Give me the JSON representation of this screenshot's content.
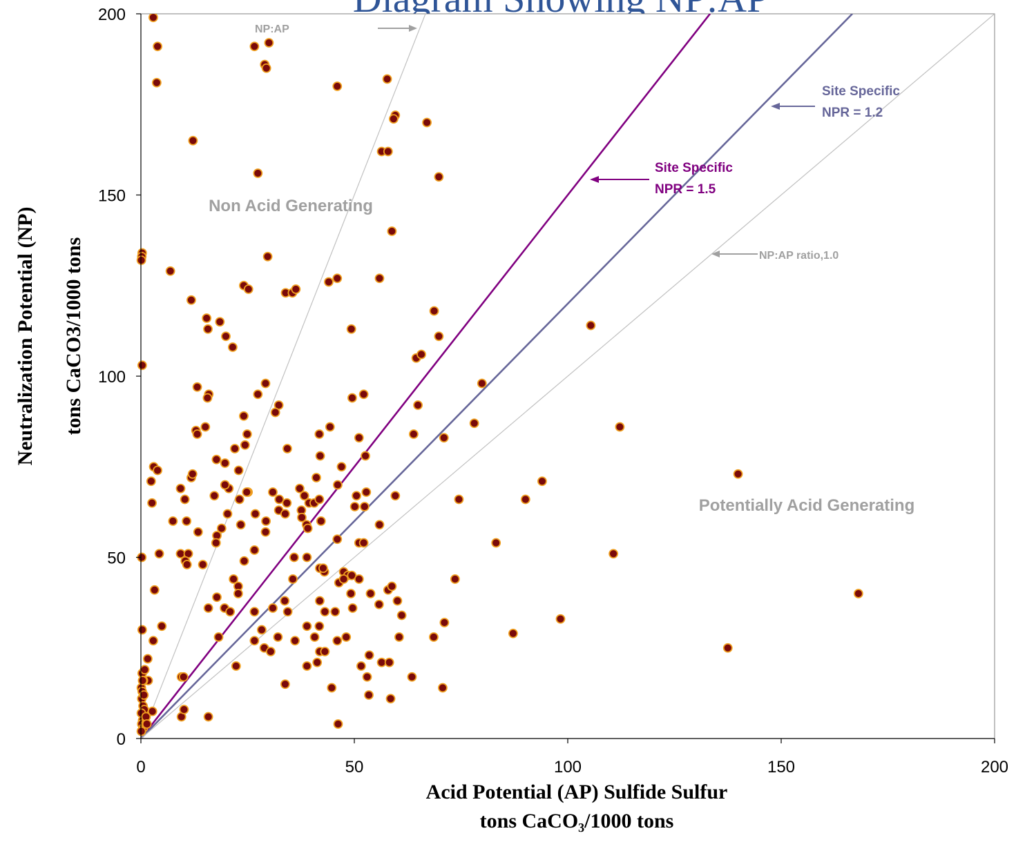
{
  "chart_data": {
    "type": "scatter",
    "title": "Diagram Showing NP:AP",
    "xlabel": [
      "Acid Potential (AP) Sulfide Sulfur",
      "tons CaCO₃/1000 tons"
    ],
    "ylabel": [
      "Neutralization Potential (NP)",
      "tons CaCO3/1000 tons"
    ],
    "xlim": [
      0,
      200
    ],
    "ylim": [
      0,
      200
    ],
    "x_ticks": [
      0,
      50,
      100,
      150,
      200
    ],
    "y_ticks": [
      0,
      50,
      100,
      150,
      200
    ],
    "grid": false,
    "marker": {
      "fill": "#7a0a0a",
      "edge": "#f0a020"
    },
    "ratio_lines": [
      {
        "ratio": 3.0,
        "color": "#c0c0c0"
      },
      {
        "ratio": 1.5,
        "color": "#800080"
      },
      {
        "ratio": 1.2,
        "color": "#666699"
      },
      {
        "ratio": 1.0,
        "color": "#c0c0c0"
      }
    ],
    "annotations": [
      {
        "text": "NP:AP",
        "color": "#a0a0a0"
      },
      {
        "text": "Site Specific",
        "color": "#666699"
      },
      {
        "text": "NPR = 1.2",
        "color": "#666699"
      },
      {
        "text": "Site Specific",
        "color": "#800080"
      },
      {
        "text": "NPR = 1.5",
        "color": "#800080"
      },
      {
        "text": "NP:AP ratio,1.0",
        "color": "#a0a0a0"
      }
    ],
    "region_labels": [
      {
        "text": "Non Acid Generating",
        "color": "#a0a0a0"
      },
      {
        "text": "Potentially Acid Generating",
        "color": "#a0a0a0"
      }
    ],
    "points": [
      [
        2.9,
        199
      ],
      [
        3.9,
        191
      ],
      [
        3.7,
        181
      ],
      [
        26.6,
        191
      ],
      [
        30,
        192
      ],
      [
        29,
        186
      ],
      [
        29.4,
        185
      ],
      [
        46,
        180
      ],
      [
        57.7,
        182
      ],
      [
        59.6,
        172
      ],
      [
        59.2,
        171
      ],
      [
        67,
        170
      ],
      [
        56.4,
        162
      ],
      [
        57.9,
        162
      ],
      [
        69.8,
        155
      ],
      [
        12.2,
        165
      ],
      [
        27.4,
        156
      ],
      [
        0.3,
        134
      ],
      [
        0.2,
        133
      ],
      [
        0.1,
        132
      ],
      [
        6.9,
        129
      ],
      [
        29.7,
        133
      ],
      [
        58.8,
        140
      ],
      [
        24.1,
        125
      ],
      [
        25.2,
        124
      ],
      [
        33.9,
        123
      ],
      [
        35.5,
        123
      ],
      [
        36.3,
        124
      ],
      [
        44,
        126
      ],
      [
        46,
        127
      ],
      [
        55.9,
        127
      ],
      [
        11.8,
        121
      ],
      [
        15.4,
        116
      ],
      [
        15.7,
        113
      ],
      [
        18.5,
        115
      ],
      [
        19.9,
        111
      ],
      [
        21.5,
        108
      ],
      [
        49.3,
        113
      ],
      [
        68.7,
        118
      ],
      [
        69.8,
        111
      ],
      [
        105.4,
        114
      ],
      [
        0.3,
        103
      ],
      [
        64.5,
        105
      ],
      [
        65.7,
        106
      ],
      [
        79.9,
        98
      ],
      [
        13.2,
        97
      ],
      [
        15.9,
        95
      ],
      [
        15.6,
        94
      ],
      [
        29.2,
        98
      ],
      [
        27.4,
        95
      ],
      [
        32.3,
        92
      ],
      [
        31.5,
        90
      ],
      [
        52.2,
        95
      ],
      [
        49.5,
        94
      ],
      [
        64.9,
        92
      ],
      [
        24.1,
        89
      ],
      [
        15.1,
        86
      ],
      [
        12.9,
        85
      ],
      [
        13.2,
        84
      ],
      [
        24.9,
        84
      ],
      [
        24.4,
        81
      ],
      [
        34.3,
        80
      ],
      [
        41.8,
        84
      ],
      [
        44.3,
        86
      ],
      [
        51.1,
        83
      ],
      [
        63.9,
        84
      ],
      [
        71,
        83
      ],
      [
        78.1,
        87
      ],
      [
        112.2,
        86
      ],
      [
        17.7,
        77
      ],
      [
        19.7,
        76
      ],
      [
        22,
        80
      ],
      [
        22.9,
        74
      ],
      [
        3,
        75
      ],
      [
        3.9,
        74
      ],
      [
        2.4,
        71
      ],
      [
        11.8,
        72
      ],
      [
        12.1,
        73
      ],
      [
        9.3,
        69
      ],
      [
        10.3,
        66
      ],
      [
        17.2,
        67
      ],
      [
        20.6,
        69
      ],
      [
        19.7,
        70
      ],
      [
        23.1,
        66
      ],
      [
        25.1,
        68
      ],
      [
        24.8,
        68
      ],
      [
        30.9,
        68
      ],
      [
        32.4,
        66
      ],
      [
        32.3,
        63
      ],
      [
        33.8,
        62
      ],
      [
        34.2,
        65
      ],
      [
        38.3,
        67
      ],
      [
        37.2,
        69
      ],
      [
        39.4,
        65
      ],
      [
        40.6,
        65
      ],
      [
        41.1,
        72
      ],
      [
        41.8,
        66
      ],
      [
        42,
        78
      ],
      [
        47,
        75
      ],
      [
        46.1,
        70
      ],
      [
        50.1,
        64
      ],
      [
        50.5,
        67
      ],
      [
        52.8,
        68
      ],
      [
        52.4,
        64
      ],
      [
        52.6,
        78
      ],
      [
        59.6,
        67
      ],
      [
        74.5,
        66
      ],
      [
        90.1,
        66
      ],
      [
        94,
        71
      ],
      [
        139.9,
        73
      ],
      [
        2.6,
        65
      ],
      [
        7.5,
        60
      ],
      [
        10.7,
        60
      ],
      [
        17.8,
        56
      ],
      [
        18.9,
        58
      ],
      [
        20.3,
        62
      ],
      [
        23.4,
        59
      ],
      [
        26.8,
        62
      ],
      [
        29.2,
        57
      ],
      [
        29.3,
        60
      ],
      [
        37.6,
        63
      ],
      [
        37.7,
        61
      ],
      [
        38.8,
        59
      ],
      [
        39.1,
        58
      ],
      [
        42.2,
        60
      ],
      [
        55.9,
        59
      ],
      [
        13.4,
        57
      ],
      [
        17.6,
        54
      ],
      [
        46,
        55
      ],
      [
        51.1,
        54
      ],
      [
        52.2,
        54
      ],
      [
        0.2,
        50
      ],
      [
        4.3,
        51
      ],
      [
        9.3,
        51
      ],
      [
        11.1,
        51
      ],
      [
        10.4,
        49
      ],
      [
        10.8,
        48
      ],
      [
        14.5,
        48
      ],
      [
        24.2,
        49
      ],
      [
        26.6,
        52
      ],
      [
        35.9,
        50
      ],
      [
        38.9,
        50
      ],
      [
        41.9,
        47
      ],
      [
        43,
        46
      ],
      [
        42.7,
        47
      ],
      [
        47.5,
        46
      ],
      [
        48.5,
        45
      ],
      [
        49.4,
        45
      ],
      [
        83.2,
        54
      ],
      [
        110.7,
        51
      ],
      [
        21.7,
        44
      ],
      [
        22.8,
        42
      ],
      [
        22.8,
        40
      ],
      [
        17.8,
        39
      ],
      [
        19.6,
        36
      ],
      [
        15.8,
        36
      ],
      [
        20.9,
        35
      ],
      [
        26.6,
        35
      ],
      [
        30.9,
        36
      ],
      [
        33.7,
        38
      ],
      [
        34.4,
        35
      ],
      [
        35.6,
        44
      ],
      [
        41.9,
        38
      ],
      [
        43.1,
        35
      ],
      [
        45.5,
        35
      ],
      [
        46.4,
        43
      ],
      [
        47.5,
        44
      ],
      [
        49.2,
        40
      ],
      [
        49.6,
        36
      ],
      [
        51.1,
        44
      ],
      [
        53.8,
        40
      ],
      [
        55.8,
        37
      ],
      [
        57.9,
        41
      ],
      [
        58.8,
        42
      ],
      [
        60.1,
        38
      ],
      [
        61.1,
        34
      ],
      [
        68.6,
        28
      ],
      [
        71.1,
        32
      ],
      [
        73.6,
        44
      ],
      [
        168.1,
        40
      ],
      [
        3.2,
        41
      ],
      [
        4.9,
        31
      ],
      [
        0.3,
        30
      ],
      [
        2.9,
        27
      ],
      [
        18.2,
        28
      ],
      [
        26.6,
        27
      ],
      [
        28.3,
        30
      ],
      [
        28.9,
        25
      ],
      [
        30.4,
        24
      ],
      [
        32.1,
        28
      ],
      [
        36.1,
        27
      ],
      [
        38.9,
        31
      ],
      [
        40.7,
        28
      ],
      [
        41.8,
        31
      ],
      [
        41.9,
        24
      ],
      [
        43.1,
        24
      ],
      [
        46,
        27
      ],
      [
        48.1,
        28
      ],
      [
        53.5,
        23
      ],
      [
        53.4,
        12
      ],
      [
        56.4,
        21
      ],
      [
        58.2,
        21
      ],
      [
        58.5,
        11
      ],
      [
        60.5,
        28
      ],
      [
        63.5,
        17
      ],
      [
        70.7,
        14
      ],
      [
        87.2,
        29
      ],
      [
        98.3,
        33
      ],
      [
        137.5,
        25
      ],
      [
        1.6,
        22
      ],
      [
        1.7,
        16
      ],
      [
        22.3,
        20
      ],
      [
        33.8,
        15
      ],
      [
        38.9,
        20
      ],
      [
        41.3,
        21
      ],
      [
        44.7,
        14
      ],
      [
        46.2,
        4
      ],
      [
        51.6,
        20
      ],
      [
        53,
        17
      ],
      [
        9.5,
        17
      ],
      [
        10,
        17
      ],
      [
        9.5,
        6
      ],
      [
        10.1,
        8
      ],
      [
        15.8,
        6
      ],
      [
        0.3,
        18
      ],
      [
        0.6,
        16
      ],
      [
        0.1,
        14
      ],
      [
        0.3,
        13
      ],
      [
        0.2,
        11
      ],
      [
        0.5,
        9
      ],
      [
        0.8,
        8
      ],
      [
        0.1,
        7
      ],
      [
        0.4,
        5
      ],
      [
        0.2,
        4
      ],
      [
        0.6,
        3
      ],
      [
        0.1,
        2
      ],
      [
        1.1,
        4
      ],
      [
        1.2,
        6
      ],
      [
        1.4,
        4
      ],
      [
        0.7,
        12
      ],
      [
        0.4,
        16
      ],
      [
        0.9,
        19
      ],
      [
        2.7,
        7.5
      ]
    ]
  }
}
